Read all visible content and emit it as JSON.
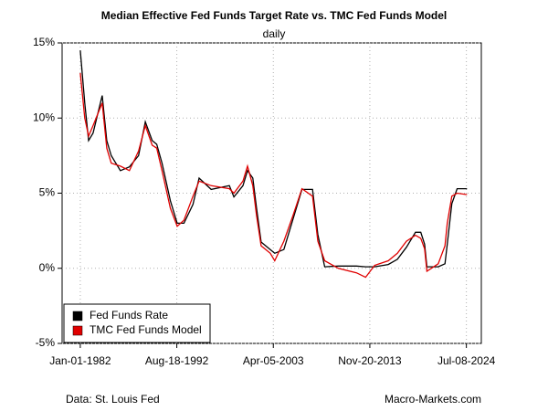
{
  "chart_data": {
    "type": "line",
    "title": "Median Effective Fed Funds Target Rate vs. TMC Fed Funds Model",
    "subtitle": "daily",
    "source": "Data: St. Louis Fed",
    "credit": "Macro-Markets.com",
    "x": [
      "1982-01-01",
      "1982-07-01",
      "1982-12-01",
      "1983-06-01",
      "1984-06-01",
      "1984-12-01",
      "1985-06-01",
      "1986-06-01",
      "1987-06-01",
      "1988-06-01",
      "1989-03-01",
      "1989-12-01",
      "1990-06-01",
      "1991-01-01",
      "1991-12-01",
      "1992-09-01",
      "1993-06-01",
      "1994-06-01",
      "1995-02-01",
      "1996-06-01",
      "1998-06-01",
      "1998-12-01",
      "1999-12-01",
      "2000-06-01",
      "2001-01-01",
      "2001-06-01",
      "2001-12-01",
      "2002-12-01",
      "2003-06-01",
      "2004-06-01",
      "2005-06-01",
      "2006-06-01",
      "2007-08-01",
      "2008-03-01",
      "2008-12-01",
      "2010-06-01",
      "2012-06-01",
      "2013-06-01",
      "2014-06-01",
      "2015-12-01",
      "2016-12-01",
      "2017-12-01",
      "2018-12-01",
      "2019-07-01",
      "2019-12-01",
      "2020-03-01",
      "2021-06-01",
      "2022-03-01",
      "2022-06-01",
      "2022-12-01",
      "2023-07-01",
      "2024-08-01"
    ],
    "series": [
      {
        "name": "Fed Funds Rate",
        "color": "#000000",
        "values": [
          14.5,
          11,
          8.5,
          9,
          11.5,
          8.5,
          7.5,
          6.5,
          6.75,
          7.5,
          9.75,
          8.5,
          8.25,
          7,
          4.5,
          3,
          3,
          4.25,
          6,
          5.25,
          5.5,
          4.75,
          5.5,
          6.5,
          6,
          4,
          1.75,
          1.25,
          1,
          1.25,
          3.25,
          5.25,
          5.25,
          2.25,
          0.1,
          0.15,
          0.15,
          0.1,
          0.1,
          0.25,
          0.6,
          1.4,
          2.4,
          2.4,
          1.6,
          0.1,
          0.1,
          0.3,
          1.6,
          4.3,
          5.3,
          5.3
        ]
      },
      {
        "name": "TMC Fed Funds Model",
        "color": "#e00000",
        "values": [
          13,
          10,
          8.8,
          9.5,
          11,
          8,
          7,
          6.8,
          6.5,
          7.8,
          9.5,
          8.2,
          8,
          6.5,
          4,
          2.8,
          3.2,
          4.8,
          5.8,
          5.5,
          5.3,
          5,
          5.8,
          6.8,
          5.5,
          3.5,
          1.5,
          1,
          0.5,
          1.8,
          3.5,
          5.3,
          4.8,
          1.8,
          0.5,
          0,
          -0.3,
          -0.6,
          0.2,
          0.5,
          1,
          1.8,
          2.2,
          2,
          1.3,
          -0.2,
          0.3,
          1.5,
          3,
          4.8,
          5,
          4.9
        ]
      }
    ],
    "xlim": [
      "1980-01-01",
      "2026-03-01"
    ],
    "xticks": [
      {
        "value": "1982-01-01",
        "label": "Jan-01-1982"
      },
      {
        "value": "1992-08-18",
        "label": "Aug-18-1992"
      },
      {
        "value": "2003-04-05",
        "label": "Apr-05-2003"
      },
      {
        "value": "2013-11-20",
        "label": "Nov-20-2013"
      },
      {
        "value": "2024-07-08",
        "label": "Jul-08-2024"
      }
    ],
    "ylim": [
      -5,
      15
    ],
    "yticks": [
      {
        "value": -5,
        "label": "-5%"
      },
      {
        "value": 0,
        "label": "0%"
      },
      {
        "value": 5,
        "label": "5%"
      },
      {
        "value": 10,
        "label": "10%"
      },
      {
        "value": 15,
        "label": "15%"
      }
    ],
    "grid": true,
    "legend": "bottom-left"
  }
}
